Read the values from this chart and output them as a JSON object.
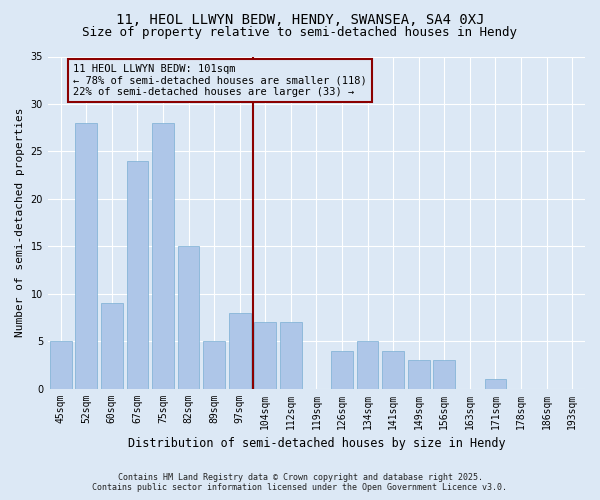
{
  "title1": "11, HEOL LLWYN BEDW, HENDY, SWANSEA, SA4 0XJ",
  "title2": "Size of property relative to semi-detached houses in Hendy",
  "xlabel": "Distribution of semi-detached houses by size in Hendy",
  "ylabel": "Number of semi-detached properties",
  "categories": [
    "45sqm",
    "52sqm",
    "60sqm",
    "67sqm",
    "75sqm",
    "82sqm",
    "89sqm",
    "97sqm",
    "104sqm",
    "112sqm",
    "119sqm",
    "126sqm",
    "134sqm",
    "141sqm",
    "149sqm",
    "156sqm",
    "163sqm",
    "171sqm",
    "178sqm",
    "186sqm",
    "193sqm"
  ],
  "values": [
    5,
    28,
    9,
    24,
    28,
    15,
    5,
    8,
    7,
    7,
    0,
    4,
    5,
    4,
    3,
    3,
    0,
    1,
    0,
    0,
    0
  ],
  "bar_color": "#aec6e8",
  "bar_edge_color": "#7aafd4",
  "background_color": "#dce8f5",
  "grid_color": "#ffffff",
  "vline_x": 7.5,
  "vline_color": "#8b0000",
  "annotation_title": "11 HEOL LLWYN BEDW: 101sqm",
  "annotation_line1": "← 78% of semi-detached houses are smaller (118)",
  "annotation_line2": "22% of semi-detached houses are larger (33) →",
  "annotation_box_color": "#8b0000",
  "ylim": [
    0,
    35
  ],
  "yticks": [
    0,
    5,
    10,
    15,
    20,
    25,
    30,
    35
  ],
  "footer1": "Contains HM Land Registry data © Crown copyright and database right 2025.",
  "footer2": "Contains public sector information licensed under the Open Government Licence v3.0.",
  "title_fontsize": 10,
  "subtitle_fontsize": 9,
  "axis_label_fontsize": 8,
  "tick_fontsize": 7,
  "annot_fontsize": 7.5
}
